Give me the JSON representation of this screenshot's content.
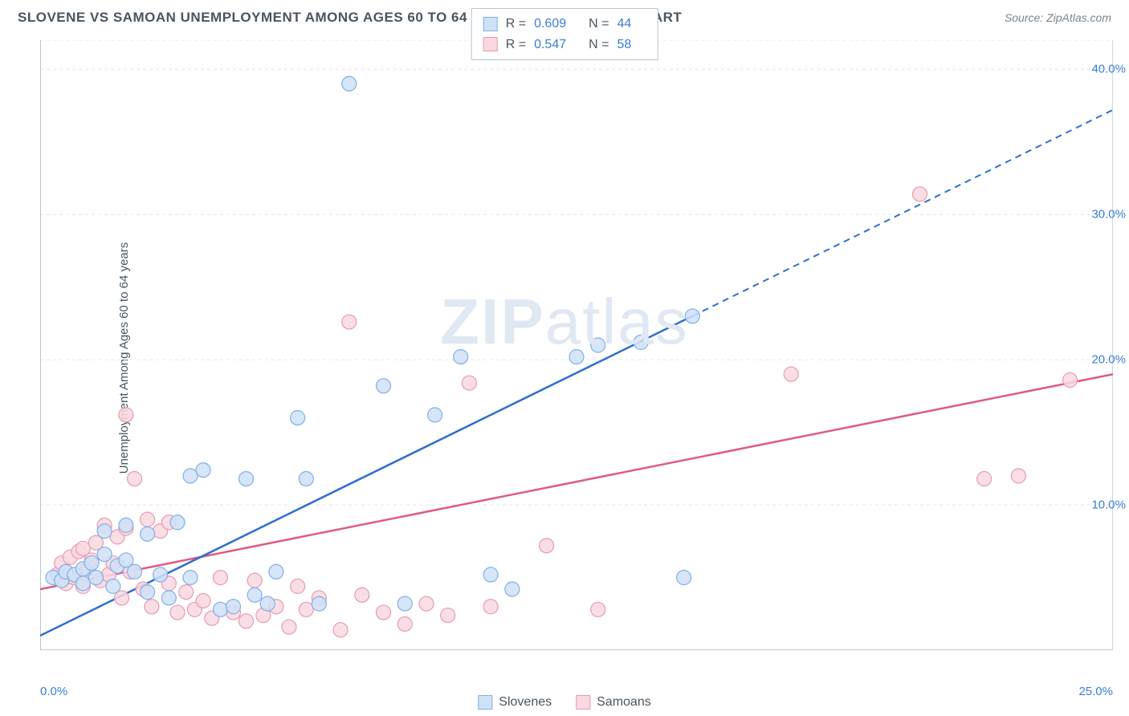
{
  "header": {
    "title": "SLOVENE VS SAMOAN UNEMPLOYMENT AMONG AGES 60 TO 64 YEARS CORRELATION CHART",
    "source": "Source: ZipAtlas.com"
  },
  "axes": {
    "y_label": "Unemployment Among Ages 60 to 64 years",
    "x_min": 0,
    "x_max": 25,
    "y_min": 0,
    "y_max": 42,
    "x_tick_min_label": "0.0%",
    "x_tick_max_label": "25.0%",
    "y_ticks": [
      {
        "v": 10,
        "label": "10.0%"
      },
      {
        "v": 20,
        "label": "20.0%"
      },
      {
        "v": 30,
        "label": "30.0%"
      },
      {
        "v": 40,
        "label": "40.0%"
      }
    ],
    "x_minor_ticks": [
      2,
      4,
      6,
      8,
      10,
      12,
      14,
      16,
      18,
      20,
      22,
      24
    ],
    "grid_color": "#e2e6eb",
    "axis_color": "#a8b2bd"
  },
  "watermark": {
    "zip": "ZIP",
    "atlas": "atlas"
  },
  "series": {
    "slovenes": {
      "label": "Slovenes",
      "fill": "#cfe1f7",
      "stroke": "#7fb0e6",
      "line_color": "#2f6fd0",
      "r_label": "R =",
      "r_value": "0.609",
      "n_label": "N =",
      "n_value": "44",
      "trend": {
        "x1": 0,
        "y1": 1.0,
        "x2": 15.2,
        "y2": 23.0,
        "ext_x2": 25,
        "ext_y2": 37.2
      },
      "points": [
        [
          0.3,
          5.0
        ],
        [
          0.5,
          4.8
        ],
        [
          0.6,
          5.4
        ],
        [
          0.8,
          5.2
        ],
        [
          1.0,
          4.6
        ],
        [
          1.0,
          5.6
        ],
        [
          1.2,
          6.0
        ],
        [
          1.3,
          5.0
        ],
        [
          1.5,
          6.6
        ],
        [
          1.5,
          8.2
        ],
        [
          1.7,
          4.4
        ],
        [
          1.8,
          5.8
        ],
        [
          2.0,
          6.2
        ],
        [
          2.0,
          8.6
        ],
        [
          2.2,
          5.4
        ],
        [
          2.5,
          4.0
        ],
        [
          2.5,
          8.0
        ],
        [
          2.8,
          5.2
        ],
        [
          3.0,
          3.6
        ],
        [
          3.2,
          8.8
        ],
        [
          3.5,
          5.0
        ],
        [
          3.5,
          12.0
        ],
        [
          3.8,
          12.4
        ],
        [
          4.2,
          2.8
        ],
        [
          4.5,
          3.0
        ],
        [
          4.8,
          11.8
        ],
        [
          5.0,
          3.8
        ],
        [
          5.3,
          3.2
        ],
        [
          5.5,
          5.4
        ],
        [
          6.0,
          16.0
        ],
        [
          6.2,
          11.8
        ],
        [
          6.5,
          3.2
        ],
        [
          7.2,
          39.0
        ],
        [
          8.0,
          18.2
        ],
        [
          8.5,
          3.2
        ],
        [
          9.2,
          16.2
        ],
        [
          9.8,
          20.2
        ],
        [
          10.5,
          5.2
        ],
        [
          11.0,
          4.2
        ],
        [
          12.5,
          20.2
        ],
        [
          13.0,
          21.0
        ],
        [
          14.0,
          21.2
        ],
        [
          15.0,
          5.0
        ],
        [
          15.2,
          23.0
        ]
      ]
    },
    "samoans": {
      "label": "Samoans",
      "fill": "#f9d8e0",
      "stroke": "#e99ab0",
      "line_color": "#e05a7e",
      "r_label": "R =",
      "r_value": "0.547",
      "n_label": "N =",
      "n_value": "58",
      "trend": {
        "x1": 0,
        "y1": 4.2,
        "x2": 25,
        "y2": 19.0
      },
      "points": [
        [
          0.4,
          5.2
        ],
        [
          0.5,
          6.0
        ],
        [
          0.6,
          4.6
        ],
        [
          0.7,
          6.4
        ],
        [
          0.8,
          5.0
        ],
        [
          0.9,
          6.8
        ],
        [
          1.0,
          4.4
        ],
        [
          1.0,
          7.0
        ],
        [
          1.1,
          5.6
        ],
        [
          1.2,
          6.2
        ],
        [
          1.3,
          7.4
        ],
        [
          1.4,
          4.8
        ],
        [
          1.5,
          8.6
        ],
        [
          1.6,
          5.2
        ],
        [
          1.7,
          6.0
        ],
        [
          1.8,
          7.8
        ],
        [
          1.9,
          3.6
        ],
        [
          2.0,
          8.4
        ],
        [
          2.0,
          16.2
        ],
        [
          2.1,
          5.4
        ],
        [
          2.2,
          11.8
        ],
        [
          2.4,
          4.2
        ],
        [
          2.5,
          9.0
        ],
        [
          2.6,
          3.0
        ],
        [
          2.8,
          8.2
        ],
        [
          3.0,
          4.6
        ],
        [
          3.0,
          8.8
        ],
        [
          3.2,
          2.6
        ],
        [
          3.4,
          4.0
        ],
        [
          3.6,
          2.8
        ],
        [
          3.8,
          3.4
        ],
        [
          4.0,
          2.2
        ],
        [
          4.2,
          5.0
        ],
        [
          4.5,
          2.6
        ],
        [
          4.8,
          2.0
        ],
        [
          5.0,
          4.8
        ],
        [
          5.2,
          2.4
        ],
        [
          5.5,
          3.0
        ],
        [
          5.8,
          1.6
        ],
        [
          6.0,
          4.4
        ],
        [
          6.2,
          2.8
        ],
        [
          6.5,
          3.6
        ],
        [
          7.0,
          1.4
        ],
        [
          7.2,
          22.6
        ],
        [
          7.5,
          3.8
        ],
        [
          8.0,
          2.6
        ],
        [
          8.5,
          1.8
        ],
        [
          9.0,
          3.2
        ],
        [
          9.5,
          2.4
        ],
        [
          10.0,
          18.4
        ],
        [
          10.5,
          3.0
        ],
        [
          11.8,
          7.2
        ],
        [
          13.0,
          2.8
        ],
        [
          17.5,
          19.0
        ],
        [
          20.5,
          31.4
        ],
        [
          22.0,
          11.8
        ],
        [
          22.8,
          12.0
        ],
        [
          24.0,
          18.6
        ]
      ]
    }
  },
  "style": {
    "marker_radius": 9,
    "marker_opacity": 0.85,
    "line_width_solid": 2.5,
    "line_width_dash": 2,
    "dash_pattern": "8,6"
  }
}
